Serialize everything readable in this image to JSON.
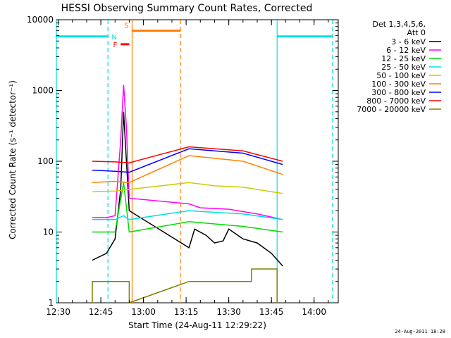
{
  "chart_data": {
    "type": "line",
    "title": "HESSI Observing Summary Count Rates, Corrected",
    "xlabel": "Start Time (24-Aug-11 12:29:22)",
    "ylabel": "Corrected Count Rate (s⁻¹ detector⁻¹)",
    "y_scale": "log",
    "ylim": [
      1,
      10000
    ],
    "xlim": [
      "12:29:22",
      "14:08:30"
    ],
    "x_tick_labels": [
      "12:30",
      "12:45",
      "13:00",
      "13:15",
      "13:30",
      "13:45",
      "14:00"
    ],
    "y_tick_labels": [
      "1",
      "10",
      "100",
      "1000",
      "10000"
    ],
    "grid": false,
    "legend_position": "right",
    "legend_title": [
      "Det 1,3,4,5,6,",
      "Att 0"
    ],
    "series": [
      {
        "name": "3 - 6 keV",
        "color": "#000000",
        "points": [
          [
            "12:42:00",
            4.0
          ],
          [
            "12:47:00",
            5
          ],
          [
            "12:50:00",
            8
          ],
          [
            "12:52:00",
            40
          ],
          [
            "12:53:00",
            500
          ],
          [
            "12:54:00",
            100
          ],
          [
            "12:55:00",
            20
          ],
          [
            "13:16:00",
            6
          ],
          [
            "13:18:00",
            11
          ],
          [
            "13:22:00",
            9
          ],
          [
            "13:25:00",
            7
          ],
          [
            "13:28:00",
            7.5
          ],
          [
            "13:30:00",
            11
          ],
          [
            "13:35:00",
            8
          ],
          [
            "13:40:00",
            7
          ],
          [
            "13:45:00",
            5
          ],
          [
            "13:49:00",
            3.3
          ]
        ]
      },
      {
        "name": "6 - 12 keV",
        "color": "#ff00ff",
        "points": [
          [
            "12:42:00",
            16
          ],
          [
            "12:47:00",
            16
          ],
          [
            "12:50:00",
            17
          ],
          [
            "12:52:00",
            200
          ],
          [
            "12:53:00",
            1200
          ],
          [
            "12:54:00",
            300
          ],
          [
            "12:55:00",
            30
          ],
          [
            "13:16:00",
            25
          ],
          [
            "13:20:00",
            22
          ],
          [
            "13:30:00",
            21
          ],
          [
            "13:40:00",
            18
          ],
          [
            "13:49:00",
            15
          ]
        ]
      },
      {
        "name": "12 - 25 keV",
        "color": "#00dd00",
        "points": [
          [
            "12:42:00",
            10
          ],
          [
            "12:50:00",
            10
          ],
          [
            "12:53:00",
            50
          ],
          [
            "12:55:00",
            10
          ],
          [
            "13:16:00",
            14
          ],
          [
            "13:25:00",
            13
          ],
          [
            "13:35:00",
            12
          ],
          [
            "13:49:00",
            10
          ]
        ]
      },
      {
        "name": "25 - 50 keV",
        "color": "#00e0e0",
        "points": [
          [
            "12:42:00",
            15
          ],
          [
            "12:50:00",
            15
          ],
          [
            "12:53:00",
            17
          ],
          [
            "12:55:00",
            15
          ],
          [
            "13:16:00",
            20
          ],
          [
            "13:25:00",
            19
          ],
          [
            "13:35:00",
            18
          ],
          [
            "13:49:00",
            15
          ]
        ]
      },
      {
        "name": "50 - 100 keV",
        "color": "#cccc00",
        "points": [
          [
            "12:42:00",
            37
          ],
          [
            "12:50:00",
            38
          ],
          [
            "12:55:00",
            40
          ],
          [
            "13:16:00",
            50
          ],
          [
            "13:25:00",
            45
          ],
          [
            "13:35:00",
            43
          ],
          [
            "13:49:00",
            35
          ]
        ]
      },
      {
        "name": "100 - 300 keV",
        "color": "#ff7f00",
        "points": [
          [
            "12:42:00",
            50
          ],
          [
            "12:50:00",
            52
          ],
          [
            "12:55:00",
            50
          ],
          [
            "13:16:00",
            120
          ],
          [
            "13:25:00",
            110
          ],
          [
            "13:35:00",
            100
          ],
          [
            "13:49:00",
            65
          ]
        ]
      },
      {
        "name": "300 - 800 keV",
        "color": "#0000ff",
        "points": [
          [
            "12:42:00",
            75
          ],
          [
            "12:50:00",
            72
          ],
          [
            "12:55:00",
            70
          ],
          [
            "13:16:00",
            150
          ],
          [
            "13:25:00",
            140
          ],
          [
            "13:35:00",
            130
          ],
          [
            "13:49:00",
            90
          ]
        ]
      },
      {
        "name": "800 - 7000 keV",
        "color": "#ff0000",
        "points": [
          [
            "12:42:00",
            100
          ],
          [
            "12:50:00",
            98
          ],
          [
            "12:55:00",
            95
          ],
          [
            "13:16:00",
            160
          ],
          [
            "13:25:00",
            150
          ],
          [
            "13:35:00",
            140
          ],
          [
            "13:49:00",
            100
          ]
        ]
      },
      {
        "name": "7000 - 20000 keV",
        "color": "#808000",
        "points": [
          [
            "12:42:00",
            1.0
          ],
          [
            "12:42:00",
            2.0
          ],
          [
            "12:55:00",
            2.0
          ],
          [
            "12:55:00",
            1.0
          ],
          [
            "13:16:00",
            2.0
          ],
          [
            "13:38:00",
            2.0
          ],
          [
            "13:38:00",
            3.0
          ],
          [
            "13:47:00",
            3.0
          ],
          [
            "13:47:00",
            1.0
          ]
        ]
      }
    ],
    "flags": {
      "saa": {
        "label": "S",
        "color": "#ff7f00",
        "level": 7000,
        "intervals": [
          [
            "12:56:00",
            "13:13:00"
          ]
        ]
      },
      "night": {
        "label": "N",
        "color": "#00e0e0",
        "level": 5800,
        "intervals": [
          [
            "12:29:22",
            "12:47:30"
          ],
          [
            "13:47:00",
            "14:06:30"
          ]
        ]
      },
      "flare": {
        "label": "F",
        "color": "#ff0000",
        "level": 4500,
        "intervals": [
          [
            "12:52:00",
            "12:55:00"
          ]
        ]
      }
    },
    "vertical_markers": [
      {
        "time": "12:29:22",
        "color": "#00e0e0",
        "style": "solid"
      },
      {
        "time": "12:47:30",
        "color": "#00e0e0",
        "style": "dashed"
      },
      {
        "time": "12:56:00",
        "color": "#ff7f00",
        "style": "solid"
      },
      {
        "time": "13:13:00",
        "color": "#ff7f00",
        "style": "dashed"
      },
      {
        "time": "13:47:00",
        "color": "#00e0e0",
        "style": "solid"
      },
      {
        "time": "14:06:30",
        "color": "#00e0e0",
        "style": "dashed"
      }
    ]
  },
  "footer": {
    "timestamp": "24-Aug-2011 18:28"
  }
}
